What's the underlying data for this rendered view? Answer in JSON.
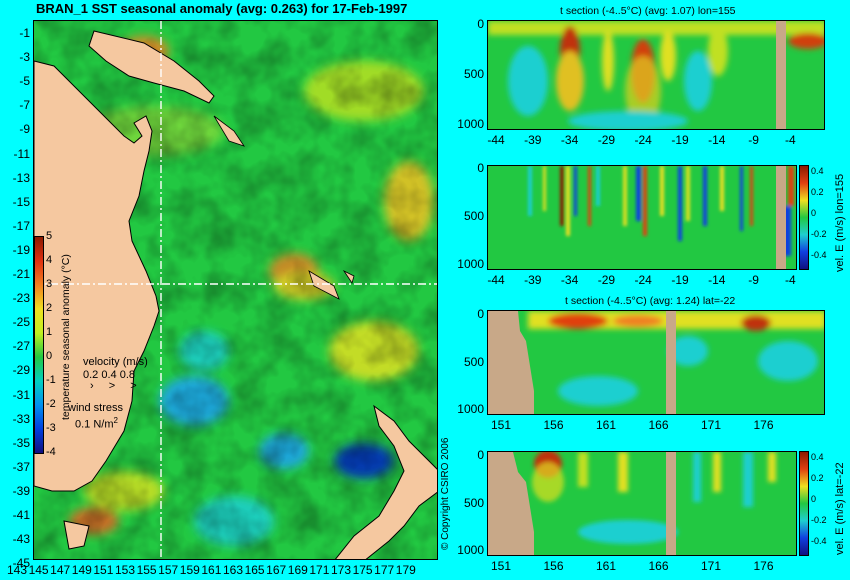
{
  "main_title": "BRAN_1 SST seasonal anomaly (avg: 0.263) for 17-Feb-1997",
  "map": {
    "lat_labels": [
      "-1",
      "-3",
      "-5",
      "-7",
      "-9",
      "-11",
      "-13",
      "-15",
      "-17",
      "-19",
      "-21",
      "-23",
      "-25",
      "-27",
      "-29",
      "-31",
      "-33",
      "-35",
      "-37",
      "-39",
      "-41",
      "-43",
      "-45"
    ],
    "lon_labels": [
      "143",
      "145",
      "147",
      "149",
      "151",
      "153",
      "155",
      "157",
      "159",
      "161",
      "163",
      "165",
      "167",
      "169",
      "171",
      "173",
      "175",
      "177",
      "179"
    ],
    "colorbar_ticks": [
      "5",
      "4",
      "3",
      "2",
      "1",
      "0",
      "-1",
      "-2",
      "-3",
      "-4"
    ],
    "colorbar_label": "temperature seasonal anomaly (°C)",
    "velocity_label": "velocity (m/s)",
    "velocity_scale": "0.2 0.4 0.8",
    "wind_label": "wind stress",
    "wind_scale": "0.1 N/m",
    "wind_scale_sup": "2",
    "copyright": "© Copyright CSIRO 2006",
    "colors": {
      "land": "#F5C8A0",
      "ocean": "#22C842",
      "anomaly_cold": "#1E40FF",
      "anomaly_warm": "#E04020"
    }
  },
  "panels": {
    "p1": {
      "title": "t section (-4..5°C) (avg: 1.07) lon=155",
      "y_ticks": [
        "0",
        "500",
        "1000"
      ],
      "x_ticks": [
        "-44",
        "-39",
        "-34",
        "-29",
        "-24",
        "-19",
        "-14",
        "-9",
        "-4"
      ]
    },
    "p2": {
      "title": "",
      "y_ticks": [
        "0",
        "500",
        "1000"
      ],
      "x_ticks": [
        "-44",
        "-39",
        "-34",
        "-29",
        "-24",
        "-19",
        "-14",
        "-9",
        "-4"
      ],
      "cb_label": "vel. E (m/s) lon=155",
      "cb_ticks": [
        "0.4",
        "0.2",
        "0",
        "-0.2",
        "-0.4"
      ]
    },
    "p3": {
      "title": "t section (-4..5°C) (avg: 1.24) lat=-22",
      "y_ticks": [
        "0",
        "500",
        "1000"
      ],
      "x_ticks": [
        "151",
        "156",
        "161",
        "166",
        "171",
        "176"
      ]
    },
    "p4": {
      "title": "",
      "y_ticks": [
        "0",
        "500",
        "1000"
      ],
      "x_ticks": [
        "151",
        "156",
        "161",
        "166",
        "171",
        "176"
      ],
      "cb_label": "vel. E (m/s) lat=-22",
      "cb_ticks": [
        "0.4",
        "0.2",
        "0",
        "-0.2",
        "-0.4"
      ]
    }
  }
}
